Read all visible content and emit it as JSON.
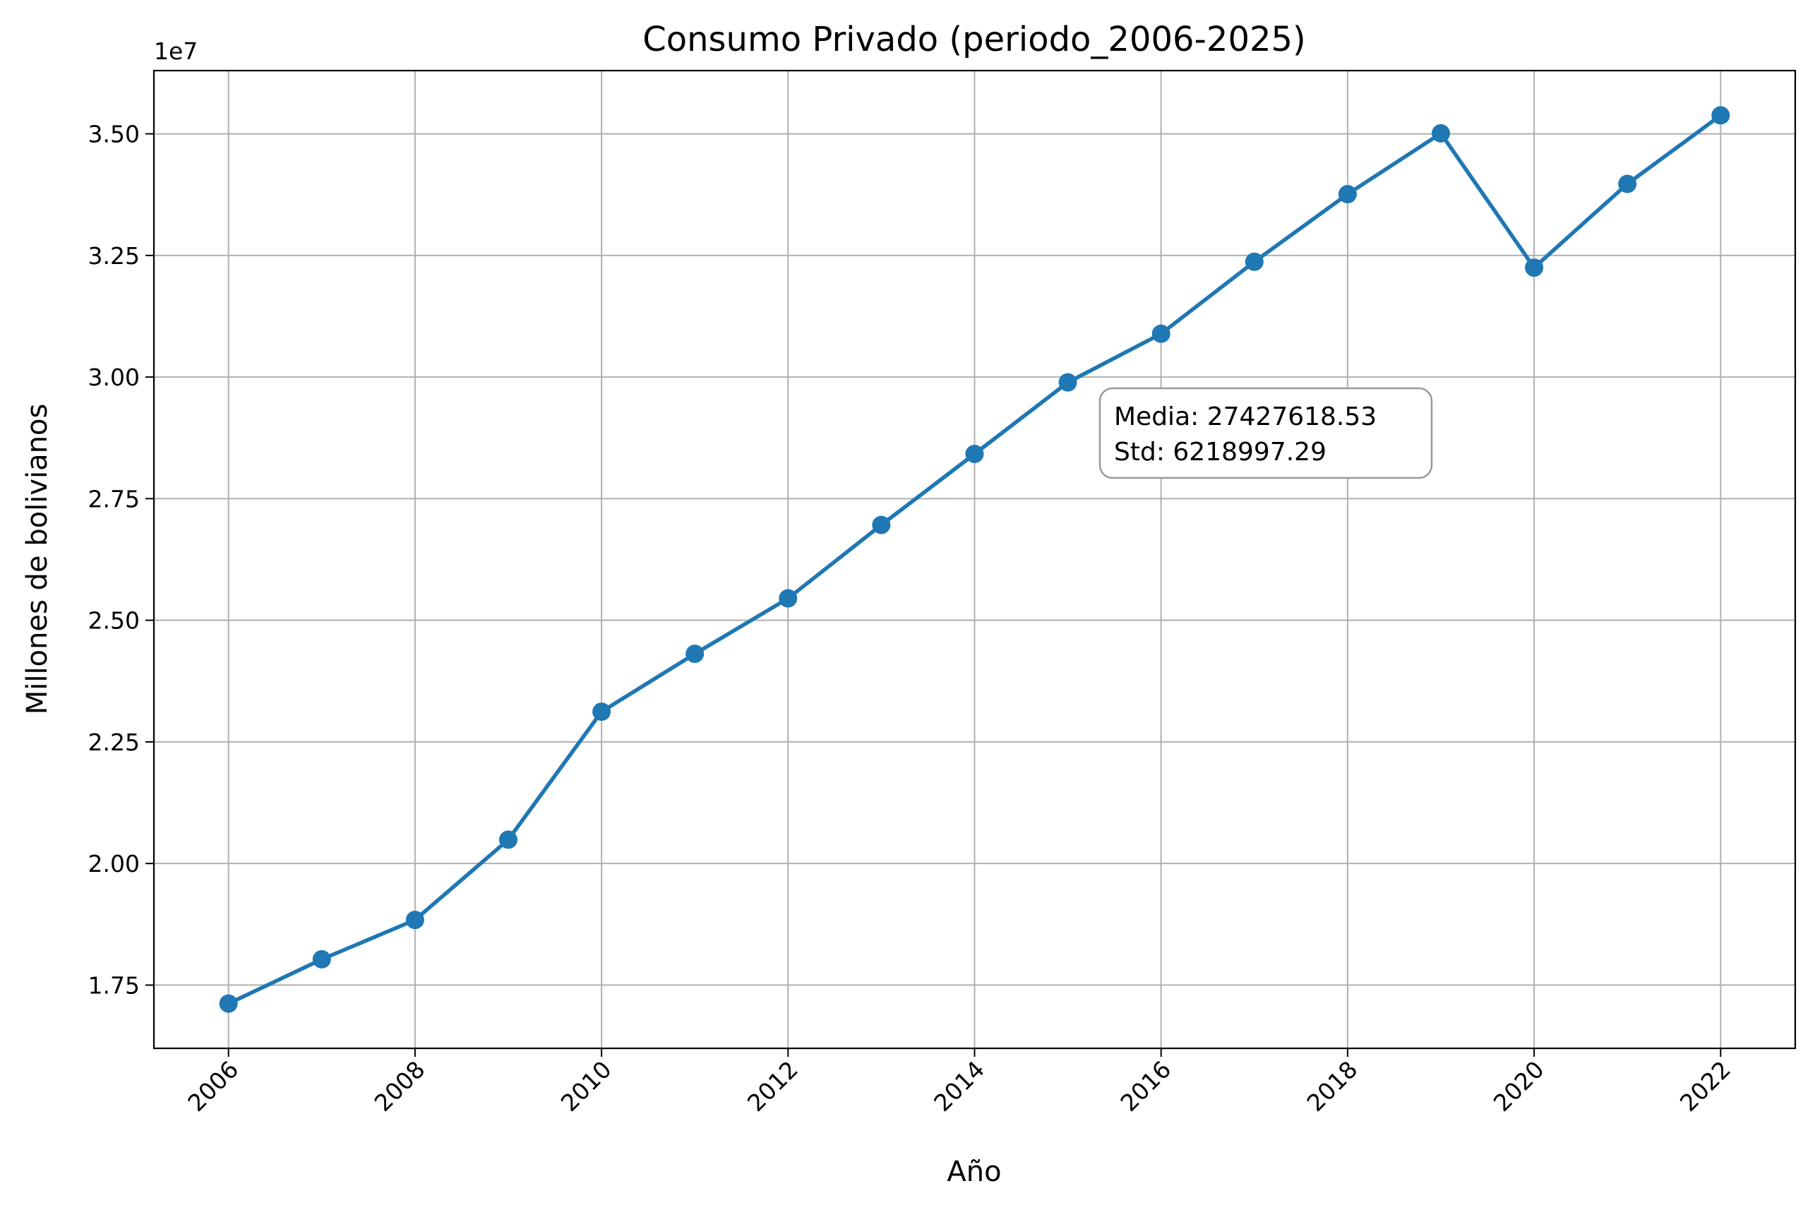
{
  "chart_data": {
    "type": "line",
    "title": "Consumo Privado (periodo_2006-2025)",
    "xlabel": "Año",
    "ylabel": "Millones de bolivianos",
    "offset_text": "1e7",
    "x": [
      2006,
      2007,
      2008,
      2009,
      2010,
      2011,
      2012,
      2013,
      2014,
      2015,
      2016,
      2017,
      2018,
      2019,
      2020,
      2021,
      2022
    ],
    "series": [
      {
        "values": [
          17120000,
          18030000,
          18840000,
          20490000,
          23120000,
          24310000,
          25450000,
          26960000,
          28420000,
          29890000,
          30890000,
          32370000,
          33760000,
          35010000,
          32250000,
          33970000,
          35380000
        ],
        "color": "#1f77b4"
      }
    ],
    "xlim": [
      2005.2,
      2022.8
    ],
    "ylim": [
      16200000,
      36300000
    ],
    "x_ticks": [
      "2006",
      "2008",
      "2010",
      "2012",
      "2014",
      "2016",
      "2018",
      "2020",
      "2022"
    ],
    "y_ticks": [
      "1.75",
      "2.00",
      "2.25",
      "2.50",
      "2.75",
      "3.00",
      "3.25",
      "3.50"
    ],
    "grid": true,
    "annotation": {
      "line1": "Media: 27427618.53",
      "line2": "Std: 6218997.29"
    }
  }
}
